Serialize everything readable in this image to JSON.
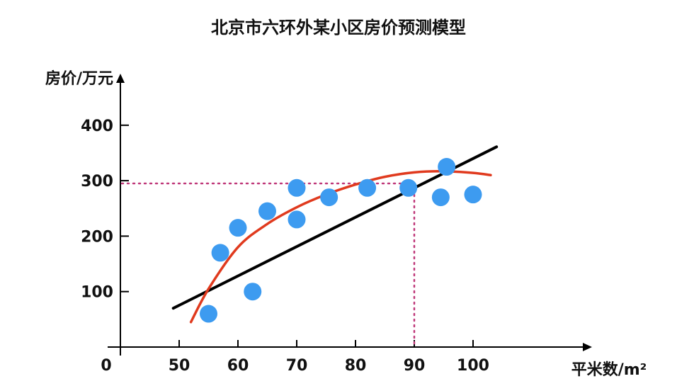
{
  "chart_data": {
    "type": "scatter",
    "title": "北京市六环外某小区房价预测模型",
    "xlabel": "平米数/m²",
    "ylabel": "房价/万元",
    "origin_label": "0",
    "xlim": [
      40,
      113
    ],
    "ylim": [
      0,
      450
    ],
    "x_ticks": [
      50,
      60,
      70,
      80,
      90,
      100
    ],
    "y_ticks": [
      100,
      200,
      300,
      400
    ],
    "grid": false,
    "points": [
      {
        "x": 55,
        "y": 60
      },
      {
        "x": 57,
        "y": 170
      },
      {
        "x": 60,
        "y": 215
      },
      {
        "x": 62.5,
        "y": 100
      },
      {
        "x": 65,
        "y": 245
      },
      {
        "x": 70,
        "y": 287
      },
      {
        "x": 70,
        "y": 230
      },
      {
        "x": 75.5,
        "y": 270
      },
      {
        "x": 82,
        "y": 287
      },
      {
        "x": 89,
        "y": 287
      },
      {
        "x": 94.5,
        "y": 270
      },
      {
        "x": 95.5,
        "y": 325
      },
      {
        "x": 100,
        "y": 275
      }
    ],
    "linear_fit": {
      "x": [
        49,
        104
      ],
      "y": [
        70,
        361
      ],
      "color": "#000000"
    },
    "curve_fit": {
      "x": [
        52,
        55,
        60,
        65,
        70,
        75,
        80,
        85,
        90,
        95,
        100,
        103
      ],
      "y": [
        45,
        105,
        180,
        222,
        252,
        275,
        293,
        307,
        315,
        317,
        314,
        310
      ],
      "color": "#e03a1e"
    },
    "reference_point": {
      "x": 90,
      "y": 295,
      "color": "#c0397a"
    },
    "point_color": "#3d9bf0"
  }
}
